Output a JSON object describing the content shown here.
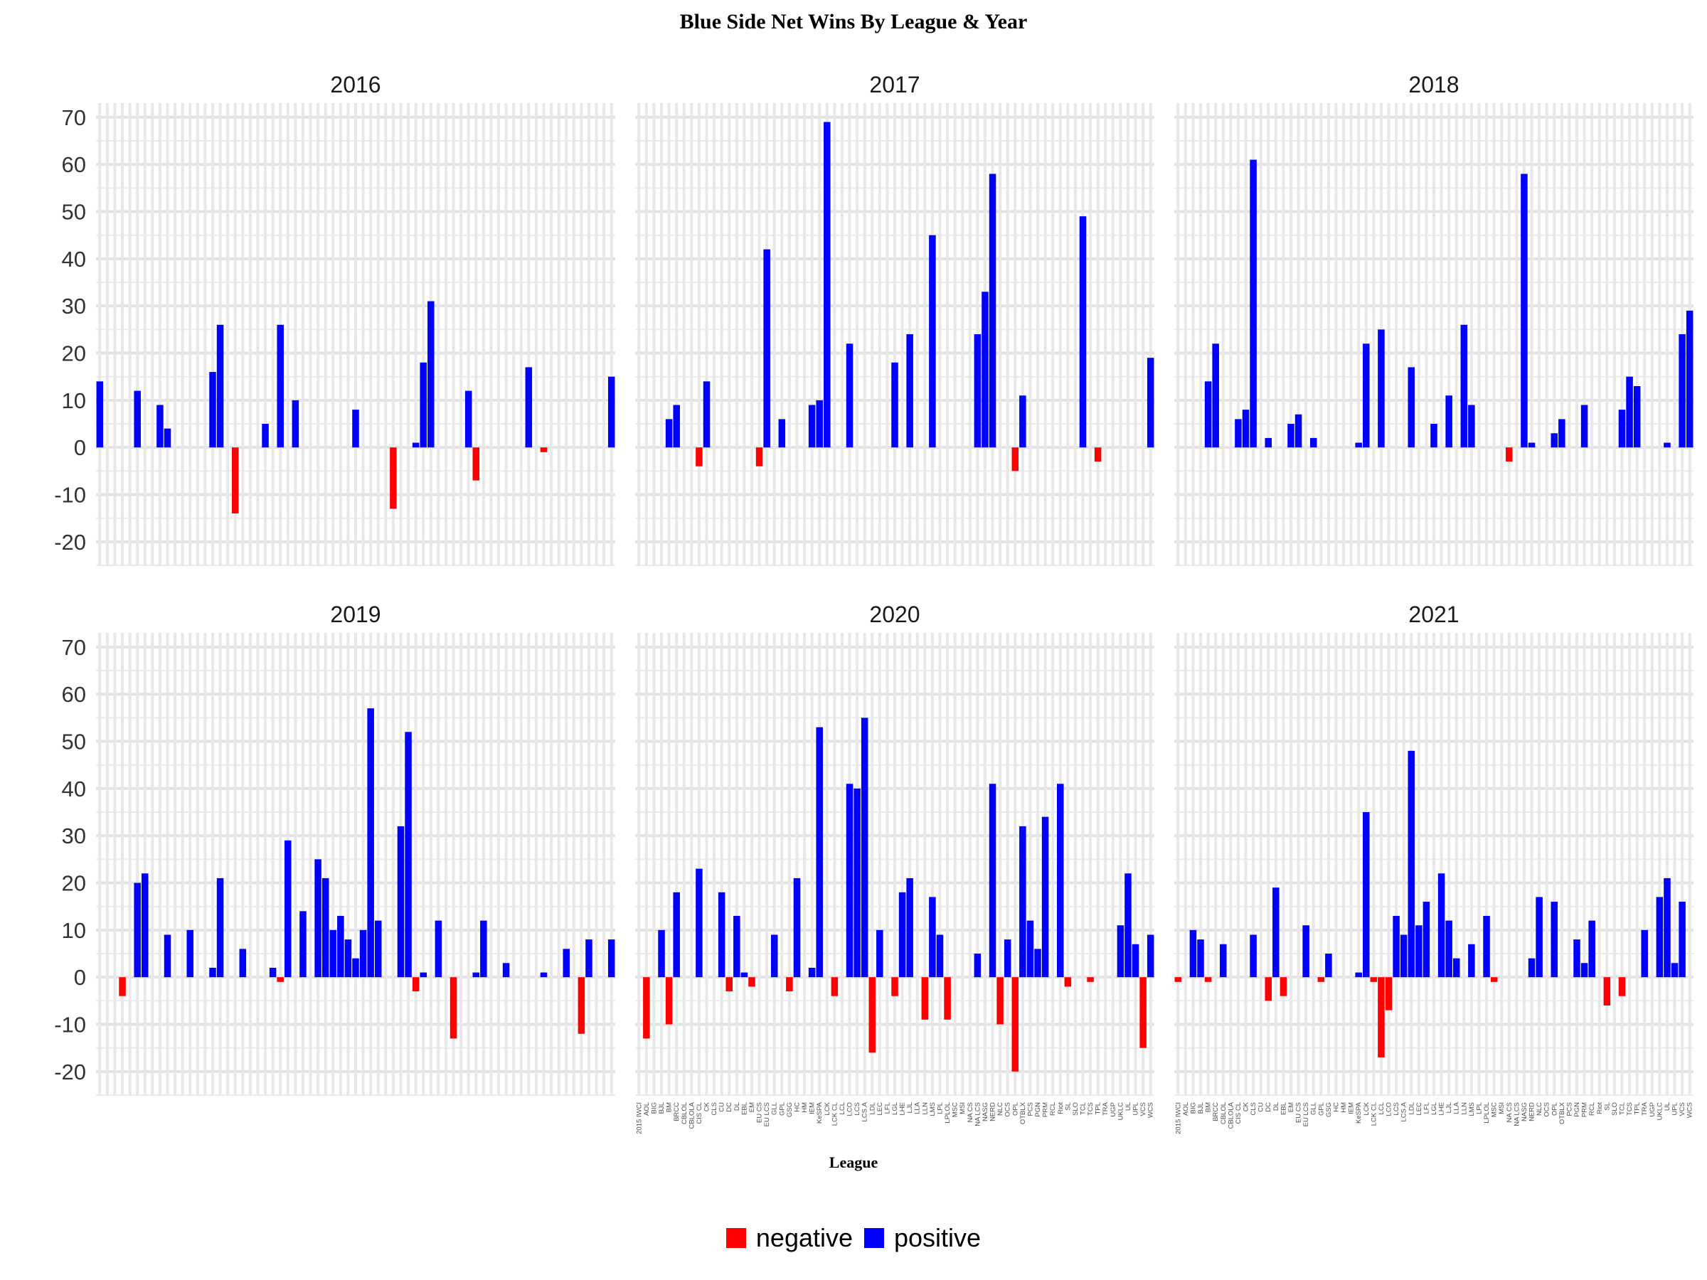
{
  "chart_data": {
    "type": "bar",
    "title": "Blue Side Net Wins By League & Year",
    "xlabel": "League",
    "ylabel": "",
    "ylim": [
      -25,
      73
    ],
    "y_ticks": [
      -20,
      -10,
      0,
      10,
      20,
      30,
      40,
      50,
      60,
      70
    ],
    "grid": true,
    "legend": {
      "position": "bottom",
      "entries": [
        {
          "label": "negative",
          "color": "#ff0000"
        },
        {
          "label": "positive",
          "color": "#0000ff"
        }
      ]
    },
    "categories": [
      "2015 IWCI",
      "AOL",
      "BIG",
      "BJL",
      "BM",
      "BRCC",
      "CBLOL",
      "CBLOLA",
      "CIS CL",
      "CK",
      "CLS",
      "CU",
      "DC",
      "DL",
      "EBL",
      "EM",
      "EU CS",
      "EU LCS",
      "GLL",
      "GPL",
      "GSG",
      "HC",
      "HM",
      "IEM",
      "KeSPA",
      "LCK",
      "LCK CL",
      "LCL",
      "LCO",
      "LCS",
      "LCS.A",
      "LDL",
      "LEC",
      "LFL",
      "LGL",
      "LHE",
      "LJL",
      "LLA",
      "LLN",
      "LMS",
      "LPL",
      "LPLOL",
      "MSC",
      "MSI",
      "NA CS",
      "NA LCS",
      "NASG",
      "NERD",
      "NLC",
      "OCS",
      "OPL",
      "OTBLX",
      "PCS",
      "PGN",
      "PRM",
      "RCL",
      "Riot",
      "SL",
      "SLO",
      "TCL",
      "TCS",
      "TPL",
      "TRA",
      "UGP",
      "UKLC",
      "UL",
      "UPL",
      "VCS",
      "WCS"
    ],
    "panels": [
      {
        "year": "2016",
        "show_x_labels": false,
        "values": {
          "2015 IWCI": 14,
          "BRCC": 12,
          "CIS CL": 9,
          "CK": 4,
          "EM": 16,
          "EU CS": 26,
          "GLL": -14,
          "HM": 5,
          "KeSPA": 26,
          "LCK CL": 10,
          "LGL": 8,
          "LMS": -13,
          "MSC": 1,
          "MSI": 18,
          "NA CS": 31,
          "OCS": 12,
          "OPL": -7,
          "SL": 17,
          "TCL": -1,
          "WCS": 15
        }
      },
      {
        "year": "2017",
        "show_x_labels": false,
        "values": {
          "BM": 6,
          "BRCC": 9,
          "CIS CL": -4,
          "CK": 14,
          "EU CS": -4,
          "EU LCS": 42,
          "GPL": 6,
          "IEM": 9,
          "KeSPA": 10,
          "LCK": 69,
          "LCO": 22,
          "LGL": 18,
          "LJL": 24,
          "LMS": 45,
          "NA LCS": 24,
          "NASG": 33,
          "NERD": 58,
          "OPL": -5,
          "OTBLX": 11,
          "TCL": 49,
          "TPL": -3,
          "WCS": 19
        }
      },
      {
        "year": "2018",
        "show_x_labels": false,
        "values": {
          "BM": 14,
          "BRCC": 22,
          "CIS CL": 6,
          "CK": 8,
          "CLS": 61,
          "DC": 2,
          "EM": 5,
          "EU CS": 7,
          "GLL": 2,
          "KeSPA": 1,
          "LCK": 22,
          "LCL": 25,
          "LDL": 17,
          "LGL": 5,
          "LJL": 11,
          "LLN": 26,
          "LMS": 9,
          "NA CS": -3,
          "NASG": 58,
          "NERD": 1,
          "OPL": 3,
          "OTBLX": 6,
          "PRM": 9,
          "TCL": 8,
          "TCS": 15,
          "TPL": 13,
          "UL": 1,
          "VCS": 24,
          "WCS": 29
        }
      },
      {
        "year": "2019",
        "show_x_labels": false,
        "values": {
          "BJL": -4,
          "BRCC": 20,
          "CBLOL": 22,
          "CK": 9,
          "DC": 10,
          "EM": 2,
          "EU CS": 21,
          "GPL": 6,
          "IEM": 2,
          "KeSPA": -1,
          "LCK": 29,
          "LCL": 14,
          "LCS": 25,
          "LCS.A": 21,
          "LDL": 10,
          "LEC": 13,
          "LFL": 8,
          "LGL": 4,
          "LHE": 10,
          "LJL": 57,
          "LLA": 12,
          "LPL": 32,
          "LPLOL": 52,
          "MSC": -3,
          "MSI": 1,
          "NA LCS": 12,
          "NERD": -13,
          "OPL": 1,
          "OTBLX": 12,
          "PRM": 3,
          "TCL": 1,
          "TRA": 6,
          "UKLC": -12,
          "UL": 8,
          "WCS": 8
        }
      },
      {
        "year": "2020",
        "show_x_labels": true,
        "values": {
          "AOL": -13,
          "BJL": 10,
          "BM": -10,
          "BRCC": 18,
          "CIS CL": 23,
          "CU": 18,
          "DC": -3,
          "DL": 13,
          "EBL": 1,
          "EM": -2,
          "GLL": 9,
          "GSG": -3,
          "HC": 21,
          "IEM": 2,
          "KeSPA": 53,
          "LCK CL": -4,
          "LCO": 41,
          "LCS": 40,
          "LCS.A": 55,
          "LDL": -16,
          "LEC": 10,
          "LGL": -4,
          "LHE": 18,
          "LJL": 21,
          "LLN": -9,
          "LMS": 17,
          "LPL": 9,
          "LPLOL": -9,
          "NA LCS": 5,
          "NERD": 41,
          "NLC": -10,
          "OCS": 8,
          "OPL": -20,
          "OTBLX": 32,
          "PCS": 12,
          "PGN": 6,
          "PRM": 34,
          "Riot": 41,
          "SL": -2,
          "TCS": -1,
          "UKLC": 11,
          "UL": 22,
          "UPL": 7,
          "VCS": -15,
          "WCS": 9
        }
      },
      {
        "year": "2021",
        "show_x_labels": true,
        "values": {
          "2015 IWCI": -1,
          "BIG": 10,
          "BJL": 8,
          "BM": -1,
          "CBLOL": 7,
          "CLS": 9,
          "DC": -5,
          "DL": 19,
          "EBL": -4,
          "EU LCS": 11,
          "GPL": -1,
          "GSG": 5,
          "KeSPA": 1,
          "LCK": 35,
          "LCK CL": -1,
          "LCL": -17,
          "LCO": -7,
          "LCS": 13,
          "LCS.A": 9,
          "LDL": 48,
          "LEC": 11,
          "LFL": 16,
          "LHE": 22,
          "LJL": 12,
          "LLA": 4,
          "LMS": 7,
          "LPLOL": 13,
          "MSC": -1,
          "NERD": 4,
          "NLC": 17,
          "OPL": 16,
          "PGN": 8,
          "PRM": 3,
          "RCL": 12,
          "SL": -6,
          "TCL": -4,
          "TRA": 10,
          "UKLC": 17,
          "UL": 21,
          "UPL": 3,
          "VCS": 16
        }
      }
    ]
  }
}
